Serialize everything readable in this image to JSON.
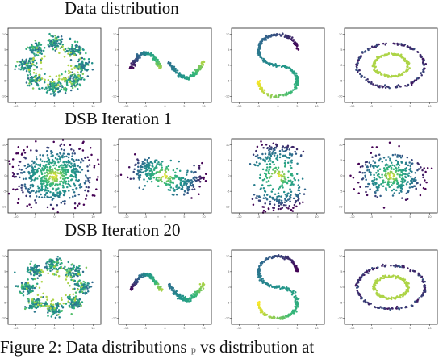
{
  "figure": {
    "row_titles": [
      "Data distribution",
      "DSB Iteration 1",
      "DSB Iteration 20"
    ],
    "caption_prefix": "Figure 2: Data distributions",
    "caption_symbol": "p",
    "caption_suffix": "vs distribution at"
  },
  "colors": {
    "low": "#440154",
    "mid_low": "#31688e",
    "mid": "#21918c",
    "mid_high": "#35b779",
    "high": "#fde725"
  },
  "chart_data": [
    {
      "type": "scatter",
      "row": 0,
      "col": 0,
      "shape": "eight-gaussians",
      "color_encoding": "viridis",
      "xlim": [
        -12,
        12
      ],
      "ylim": [
        -12,
        12
      ],
      "xticks": [
        -10,
        -5,
        0,
        5,
        10
      ],
      "yticks": [
        -10,
        -5,
        0,
        5,
        10
      ]
    },
    {
      "type": "scatter",
      "row": 0,
      "col": 1,
      "shape": "two-moons",
      "color_encoding": "viridis",
      "xlim": [
        -12,
        12
      ],
      "ylim": [
        -12,
        12
      ],
      "xticks": [
        -10,
        -5,
        0,
        5,
        10
      ],
      "yticks": [
        -10,
        -5,
        0,
        5,
        10
      ]
    },
    {
      "type": "scatter",
      "row": 0,
      "col": 2,
      "shape": "s-curve",
      "color_encoding": "viridis",
      "xlim": [
        -12,
        12
      ],
      "ylim": [
        -12,
        12
      ],
      "xticks": [
        -10,
        -5,
        0,
        5,
        10
      ],
      "yticks": [
        -10,
        -5,
        0,
        5,
        10
      ]
    },
    {
      "type": "scatter",
      "row": 0,
      "col": 3,
      "shape": "circles",
      "color_encoding": "viridis",
      "xlim": [
        -12,
        12
      ],
      "ylim": [
        -12,
        12
      ],
      "xticks": [
        -10,
        -5,
        0,
        5,
        10
      ],
      "yticks": [
        -10,
        -5,
        0,
        5,
        10
      ]
    },
    {
      "type": "scatter",
      "row": 1,
      "col": 0,
      "shape": "eight-gaussians-noisy",
      "color_encoding": "viridis",
      "xlim": [
        -12,
        12
      ],
      "ylim": [
        -12,
        12
      ],
      "xticks": [
        -10,
        -5,
        0,
        5,
        10
      ],
      "yticks": [
        -10,
        -5,
        0,
        5,
        10
      ]
    },
    {
      "type": "scatter",
      "row": 1,
      "col": 1,
      "shape": "two-moons-noisy",
      "color_encoding": "viridis",
      "xlim": [
        -12,
        12
      ],
      "ylim": [
        -12,
        12
      ],
      "xticks": [
        -10,
        -5,
        0,
        5,
        10
      ],
      "yticks": [
        -10,
        -5,
        0,
        5,
        10
      ]
    },
    {
      "type": "scatter",
      "row": 1,
      "col": 2,
      "shape": "s-curve-noisy",
      "color_encoding": "viridis",
      "xlim": [
        -12,
        12
      ],
      "ylim": [
        -12,
        12
      ],
      "xticks": [
        -10,
        -5,
        0,
        5,
        10
      ],
      "yticks": [
        -10,
        -5,
        0,
        5,
        10
      ]
    },
    {
      "type": "scatter",
      "row": 1,
      "col": 3,
      "shape": "circles-noisy",
      "color_encoding": "viridis",
      "xlim": [
        -12,
        12
      ],
      "ylim": [
        -12,
        12
      ],
      "xticks": [
        -10,
        -5,
        0,
        5,
        10
      ],
      "yticks": [
        -10,
        -5,
        0,
        5,
        10
      ]
    },
    {
      "type": "scatter",
      "row": 2,
      "col": 0,
      "shape": "eight-gaussians",
      "color_encoding": "viridis",
      "xlim": [
        -12,
        12
      ],
      "ylim": [
        -12,
        12
      ],
      "xticks": [
        -10,
        -5,
        0,
        5,
        10
      ],
      "yticks": [
        -10,
        -5,
        0,
        5,
        10
      ]
    },
    {
      "type": "scatter",
      "row": 2,
      "col": 1,
      "shape": "two-moons",
      "color_encoding": "viridis",
      "xlim": [
        -12,
        12
      ],
      "ylim": [
        -12,
        12
      ],
      "xticks": [
        -10,
        -5,
        0,
        5,
        10
      ],
      "yticks": [
        -10,
        -5,
        0,
        5,
        10
      ]
    },
    {
      "type": "scatter",
      "row": 2,
      "col": 2,
      "shape": "s-curve",
      "color_encoding": "viridis",
      "xlim": [
        -12,
        12
      ],
      "ylim": [
        -12,
        12
      ],
      "xticks": [
        -10,
        -5,
        0,
        5,
        10
      ],
      "yticks": [
        -10,
        -5,
        0,
        5,
        10
      ]
    },
    {
      "type": "scatter",
      "row": 2,
      "col": 3,
      "shape": "circles",
      "color_encoding": "viridis",
      "xlim": [
        -12,
        12
      ],
      "ylim": [
        -12,
        12
      ],
      "xticks": [
        -10,
        -5,
        0,
        5,
        10
      ],
      "yticks": [
        -10,
        -5,
        0,
        5,
        10
      ]
    }
  ]
}
